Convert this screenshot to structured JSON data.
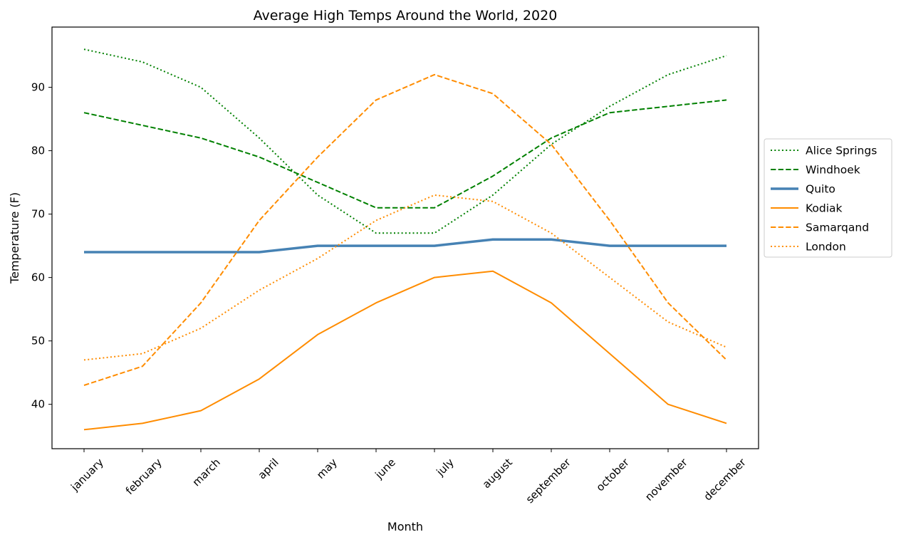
{
  "chart_data": {
    "type": "line",
    "title": "Average High Temps Around the World, 2020",
    "xlabel": "Month",
    "ylabel": "Temperature (F)",
    "categories": [
      "january",
      "february",
      "march",
      "april",
      "may",
      "june",
      "july",
      "august",
      "september",
      "october",
      "november",
      "december"
    ],
    "ylim": [
      33,
      99.5
    ],
    "yticks": [
      40,
      50,
      60,
      70,
      80,
      90
    ],
    "grid": false,
    "legend_position": "outside right",
    "series": [
      {
        "name": "Alice Springs",
        "color": "#008000",
        "style": "dotted",
        "values": [
          96,
          94,
          90,
          82,
          73,
          67,
          67,
          73,
          81,
          87,
          92,
          95
        ]
      },
      {
        "name": "Windhoek",
        "color": "#008000",
        "style": "dashed",
        "values": [
          86,
          84,
          82,
          79,
          75,
          71,
          71,
          76,
          82,
          86,
          87,
          88
        ]
      },
      {
        "name": "Quito",
        "color": "#4682b4",
        "style": "solid-thick",
        "values": [
          64,
          64,
          64,
          64,
          65,
          65,
          65,
          66,
          66,
          65,
          65,
          65
        ]
      },
      {
        "name": "Kodiak",
        "color": "#ff8c00",
        "style": "solid",
        "values": [
          36,
          37,
          39,
          44,
          51,
          56,
          60,
          61,
          56,
          48,
          40,
          37
        ]
      },
      {
        "name": "Samarqand",
        "color": "#ff8c00",
        "style": "dashed",
        "values": [
          43,
          46,
          56,
          69,
          79,
          88,
          92,
          89,
          81,
          69,
          56,
          47
        ]
      },
      {
        "name": "London",
        "color": "#ff8c00",
        "style": "dotted",
        "values": [
          47,
          48,
          52,
          58,
          63,
          69,
          73,
          72,
          67,
          60,
          53,
          49
        ]
      }
    ]
  }
}
